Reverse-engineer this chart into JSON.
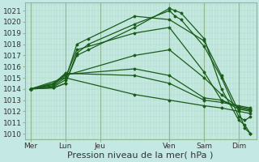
{
  "background_color": "#c4e8e4",
  "grid_color_minor": "#b0d8b0",
  "grid_color_major": "#90b890",
  "line_color": "#1a5c1a",
  "xlabel": "Pression niveau de la mer( hPa )",
  "ylim": [
    1009.5,
    1021.7
  ],
  "yticks": [
    1010,
    1011,
    1012,
    1013,
    1014,
    1015,
    1016,
    1017,
    1018,
    1019,
    1020,
    1021
  ],
  "xtick_labels": [
    "Mer",
    "Lun",
    "Jeu",
    "Ven",
    "Sam",
    "Dim"
  ],
  "xtick_positions": [
    0,
    12,
    24,
    48,
    60,
    72
  ],
  "xlim": [
    -2,
    78
  ],
  "vlines_x": [
    0,
    12,
    24,
    48,
    60,
    72
  ],
  "lines": [
    {
      "x": [
        0,
        8,
        12,
        16,
        20,
        36,
        48,
        50,
        52,
        60,
        66,
        72,
        74,
        76
      ],
      "y": [
        1014.0,
        1014.1,
        1014.5,
        1017.0,
        1017.5,
        1019.5,
        1021.2,
        1021.0,
        1020.8,
        1018.5,
        1014.0,
        1011.2,
        1010.8,
        1010.0
      ]
    },
    {
      "x": [
        0,
        8,
        12,
        16,
        20,
        36,
        48,
        50,
        52,
        60,
        66,
        72,
        74,
        76
      ],
      "y": [
        1014.0,
        1014.1,
        1014.5,
        1017.2,
        1018.0,
        1019.8,
        1021.0,
        1020.5,
        1020.2,
        1017.8,
        1015.0,
        1011.5,
        1011.2,
        1011.5
      ]
    },
    {
      "x": [
        0,
        8,
        12,
        16,
        20,
        36,
        48,
        60,
        66,
        72,
        76
      ],
      "y": [
        1014.0,
        1014.2,
        1014.8,
        1018.0,
        1018.5,
        1020.5,
        1020.2,
        1018.3,
        1015.2,
        1012.0,
        1011.8
      ]
    },
    {
      "x": [
        0,
        8,
        12,
        16,
        36,
        48,
        60,
        66,
        72,
        76
      ],
      "y": [
        1014.0,
        1014.3,
        1015.0,
        1017.5,
        1019.0,
        1019.5,
        1015.5,
        1013.0,
        1012.2,
        1012.0
      ]
    },
    {
      "x": [
        0,
        8,
        12,
        36,
        48,
        60,
        66,
        72,
        76
      ],
      "y": [
        1014.0,
        1014.4,
        1015.2,
        1017.0,
        1017.5,
        1015.0,
        1013.5,
        1012.3,
        1012.1
      ]
    },
    {
      "x": [
        0,
        8,
        12,
        36,
        48,
        60,
        66,
        72,
        76
      ],
      "y": [
        1014.0,
        1014.5,
        1015.3,
        1015.8,
        1015.2,
        1013.2,
        1013.0,
        1012.4,
        1012.2
      ]
    },
    {
      "x": [
        0,
        8,
        12,
        36,
        48,
        60,
        66,
        72,
        76
      ],
      "y": [
        1014.0,
        1014.5,
        1015.4,
        1015.2,
        1014.5,
        1013.0,
        1012.8,
        1012.5,
        1012.3
      ]
    },
    {
      "x": [
        0,
        12,
        36,
        48,
        60,
        66,
        72,
        74,
        76
      ],
      "y": [
        1014.0,
        1015.0,
        1013.5,
        1013.0,
        1012.5,
        1012.3,
        1012.0,
        1010.5,
        1010.0
      ]
    }
  ],
  "marker": "D",
  "marker_size": 1.5,
  "line_width": 0.9,
  "xlabel_fontsize": 8,
  "tick_fontsize": 6.5
}
